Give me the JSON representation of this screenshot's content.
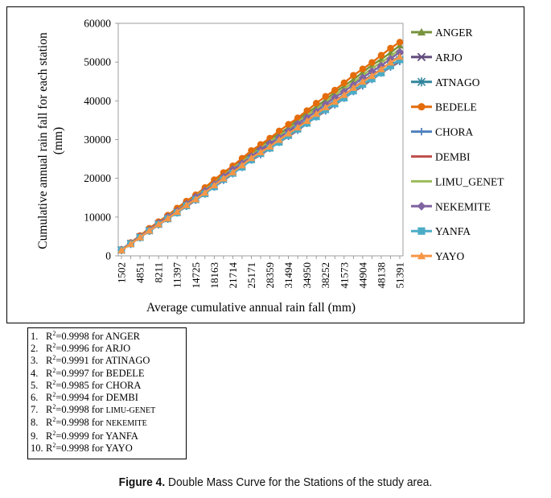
{
  "chart_data": {
    "type": "line",
    "title": "",
    "xlabel": "Average cumulative annual rain fall (mm)",
    "ylabel": "Cumulative annual rain fall for each station (mm)",
    "ylabel_lines": [
      "Cumulative annual rain fall for each station",
      "(mm)"
    ],
    "ylim": [
      0,
      60000
    ],
    "yticks": [
      0,
      10000,
      20000,
      30000,
      40000,
      50000,
      60000
    ],
    "x_categories": [
      "1502",
      "4851",
      "8211",
      "11397",
      "14725",
      "18163",
      "21714",
      "25171",
      "28359",
      "31494",
      "34950",
      "38252",
      "41573",
      "44904",
      "48138",
      "51391"
    ],
    "x_values": [
      1502,
      3164,
      4851,
      6546,
      8211,
      9807,
      11397,
      13048,
      14725,
      16441,
      18163,
      19956,
      21714,
      23421,
      25171,
      26764,
      28359,
      29930,
      31494,
      33203,
      34950,
      36567,
      38252,
      39899,
      41573,
      43248,
      44904,
      46545,
      48138,
      49782,
      51391
    ],
    "legend_position": "right",
    "grid": false,
    "series": [
      {
        "name": "ANGER",
        "color": "#77933C",
        "marker": "triangle",
        "end": 54200,
        "bias": 300
      },
      {
        "name": "ARJO",
        "color": "#604A7B",
        "marker": "x",
        "end": 51500,
        "bias": 150
      },
      {
        "name": "ATNAGO",
        "color": "#31859C",
        "marker": "star",
        "end": 50600,
        "bias": -80
      },
      {
        "name": "BEDELE",
        "color": "#E46C0A",
        "marker": "circle",
        "end": 55200,
        "bias": 650
      },
      {
        "name": "CHORA",
        "color": "#4F81BD",
        "marker": "plus",
        "end": 50200,
        "bias": -120
      },
      {
        "name": "DEMBI",
        "color": "#C0504D",
        "marker": "dash",
        "end": 50400,
        "bias": -60
      },
      {
        "name": "LIMU_GENET",
        "color": "#9BBB59",
        "marker": "line",
        "end": 53300,
        "bias": 350
      },
      {
        "name": "NEKEMITE",
        "color": "#8064A2",
        "marker": "diamond",
        "end": 52500,
        "bias": 450
      },
      {
        "name": "YANFA",
        "color": "#4BACC6",
        "marker": "square",
        "end": 50500,
        "bias": -200
      },
      {
        "name": "YAYO",
        "color": "#F79646",
        "marker": "triangle",
        "end": 51400,
        "bias": -450
      }
    ]
  },
  "r2_list": [
    {
      "num": "1.",
      "r2": "=0.9998 for ",
      "station": "ANGER",
      "small": false
    },
    {
      "num": "2.",
      "r2": "=0.9996 for ",
      "station": "ARJO",
      "small": false
    },
    {
      "num": "3.",
      "r2": "=0.9991 for ",
      "station": "ATINAGO",
      "small": false
    },
    {
      "num": "4.",
      "r2": "=0.9997 for ",
      "station": "BEDELE",
      "small": false
    },
    {
      "num": "5.",
      "r2": "=0.9985 for ",
      "station": "CHORA",
      "small": false
    },
    {
      "num": "6.",
      "r2": "=0.9994 for ",
      "station": "DEMBI",
      "small": false
    },
    {
      "num": "7.",
      "r2": "=0.9998 for ",
      "station": "LIMU-GENET",
      "small": true
    },
    {
      "num": "8.",
      "r2": "=0.9998 for ",
      "station": "NEKEMITE",
      "small": true
    },
    {
      "num": "9.",
      "r2": "=0.9999 for ",
      "station": "YANFA",
      "small": false
    },
    {
      "num": "10.",
      "r2": "=0.9998 for ",
      "station": "YAYO",
      "small": false
    }
  ],
  "r2_symbol": "R",
  "r2_exp": "2",
  "caption": {
    "label": "Figure 4.",
    "text": " Double Mass Curve for the Stations of the study area."
  }
}
